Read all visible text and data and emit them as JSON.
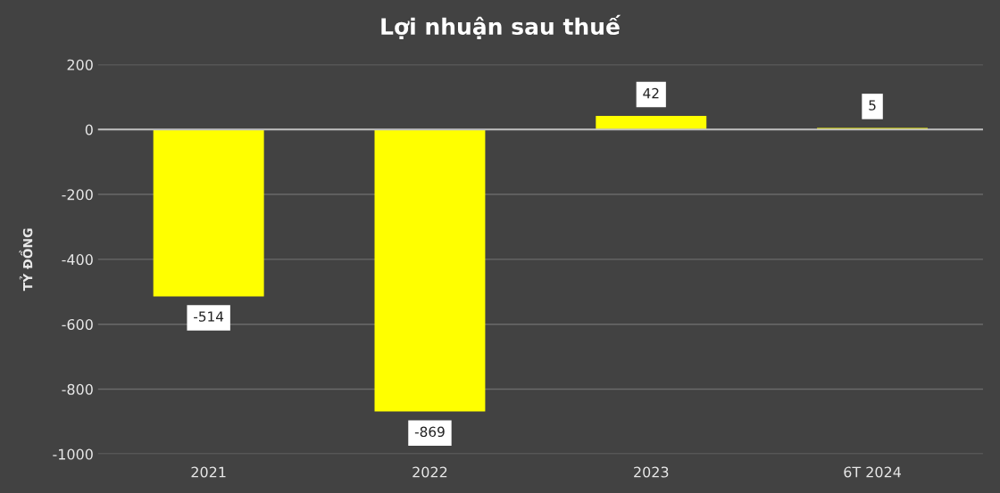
{
  "chart_data": {
    "type": "bar",
    "title": "Lợi nhuận sau thuế",
    "ylabel": "TỶ ĐỒNG",
    "categories": [
      "2021",
      "2022",
      "2023",
      "6T 2024"
    ],
    "values": [
      -514,
      -869,
      42,
      5
    ],
    "color": "#ffff00",
    "ylim": [
      -1000,
      200
    ],
    "yticks": [
      -1000,
      -800,
      -600,
      -400,
      -200,
      0,
      200
    ],
    "grid": "y",
    "data_labels": true
  }
}
